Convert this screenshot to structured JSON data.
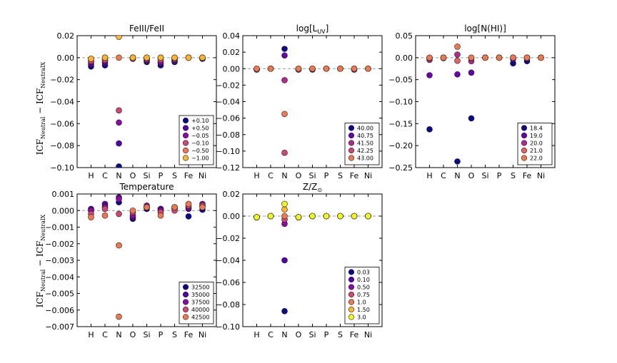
{
  "figure": {
    "ylabel_main": "ICF",
    "ylabel_sub1": "Neutral",
    "ylabel_minus": " − ICF",
    "ylabel_sub2": "NeutralX"
  },
  "chart_data": [
    {
      "type": "scatter",
      "title": "FeIII/FeII",
      "categories": [
        "H",
        "C",
        "N",
        "O",
        "Si",
        "P",
        "S",
        "Fe",
        "Ni"
      ],
      "ylim": [
        -0.1,
        0.02
      ],
      "yticks": [
        "0.02",
        "0.00",
        "−0.02",
        "−0.04",
        "−0.06",
        "−0.08",
        "−0.10"
      ],
      "ytick_values": [
        0.02,
        0.0,
        -0.02,
        -0.04,
        -0.06,
        -0.08,
        -0.1
      ],
      "reference_line": 0,
      "legend_position": "lower-right",
      "series": [
        {
          "name": "+0.10",
          "color": "#0d0887",
          "values": [
            -0.008,
            -0.007,
            -0.099,
            0.0,
            -0.004,
            -0.007,
            -0.004,
            0.0,
            -0.001
          ]
        },
        {
          "name": "+0.50",
          "color": "#5302a3",
          "values": [
            -0.006,
            -0.005,
            -0.078,
            -0.001,
            -0.003,
            -0.005,
            -0.003,
            0.0,
            -0.001
          ]
        },
        {
          "name": "−0.05",
          "color": "#8b0aa5",
          "values": [
            -0.004,
            -0.003,
            -0.059,
            -0.001,
            -0.002,
            -0.004,
            -0.002,
            0.0,
            0.0
          ]
        },
        {
          "name": "−0.10",
          "color": "#cc4778",
          "values": [
            -0.003,
            -0.002,
            -0.048,
            0.0,
            -0.001,
            -0.002,
            -0.001,
            0.0,
            0.0
          ]
        },
        {
          "name": "−0.50",
          "color": "#ed7953",
          "values": [
            -0.001,
            0.0,
            0.0,
            0.0,
            0.0,
            0.0,
            0.0,
            0.0,
            0.0
          ]
        },
        {
          "name": "−1.00",
          "color": "#fdb42f",
          "values": [
            -0.001,
            0.0,
            0.019,
            0.0,
            0.0,
            0.0,
            0.0,
            0.0,
            0.0
          ]
        }
      ]
    },
    {
      "type": "scatter",
      "title": "log[L",
      "title_sub": "UV",
      "title_end": "]",
      "categories": [
        "H",
        "C",
        "N",
        "O",
        "Si",
        "P",
        "S",
        "Fe",
        "Ni"
      ],
      "ylim": [
        -0.12,
        0.04
      ],
      "yticks": [
        "0.04",
        "0.02",
        "0.00",
        "−0.02",
        "−0.04",
        "−0.06",
        "−0.08",
        "−0.10",
        "−0.12"
      ],
      "ytick_values": [
        0.04,
        0.02,
        0.0,
        -0.02,
        -0.04,
        -0.06,
        -0.08,
        -0.1,
        -0.12
      ],
      "reference_line": 0,
      "legend_position": "lower-right",
      "series": [
        {
          "name": "40.00",
          "color": "#0d0887",
          "values": [
            -0.001,
            0.0,
            0.024,
            -0.001,
            -0.001,
            0.0,
            0.0,
            -0.001,
            0.0
          ]
        },
        {
          "name": "40.75",
          "color": "#6a00a8",
          "values": [
            -0.001,
            0.0,
            0.016,
            -0.001,
            -0.001,
            0.0,
            0.0,
            -0.001,
            0.0
          ]
        },
        {
          "name": "41.50",
          "color": "#b12a90",
          "values": [
            -0.001,
            0.0,
            -0.014,
            -0.001,
            0.0,
            0.0,
            0.0,
            0.0,
            0.0
          ]
        },
        {
          "name": "42.25",
          "color": "#cc4778",
          "values": [
            0.0,
            0.0,
            -0.102,
            0.0,
            0.0,
            0.0,
            0.0,
            0.0,
            0.0
          ]
        },
        {
          "name": "43.00",
          "color": "#ed7953",
          "values": [
            0.0,
            0.0,
            -0.055,
            0.0,
            0.0,
            0.0,
            0.0,
            0.0,
            0.0
          ]
        }
      ]
    },
    {
      "type": "scatter",
      "title": "log[N(HI)]",
      "categories": [
        "H",
        "C",
        "N",
        "O",
        "Si",
        "P",
        "S",
        "Fe",
        "Ni"
      ],
      "ylim": [
        -0.25,
        0.05
      ],
      "yticks": [
        "0.05",
        "0.00",
        "−0.05",
        "−0.10",
        "−0.15",
        "−0.20",
        "−0.25"
      ],
      "ytick_values": [
        0.05,
        0.0,
        -0.05,
        -0.1,
        -0.15,
        -0.2,
        -0.25
      ],
      "reference_line": 0,
      "legend_position": "lower-right",
      "series": [
        {
          "name": "18.4",
          "color": "#0d0887",
          "values": [
            -0.163,
            -0.001,
            -0.236,
            -0.138,
            0.0,
            0.0,
            -0.013,
            -0.008,
            0.0
          ]
        },
        {
          "name": "19.0",
          "color": "#6a00a8",
          "values": [
            -0.04,
            0.0,
            -0.038,
            -0.034,
            0.0,
            0.0,
            -0.003,
            -0.002,
            0.0
          ]
        },
        {
          "name": "20.0",
          "color": "#b12a90",
          "values": [
            -0.005,
            0.0,
            0.007,
            -0.008,
            0.0,
            0.0,
            0.0,
            0.0,
            0.0
          ]
        },
        {
          "name": "21.0",
          "color": "#e16462",
          "values": [
            -0.001,
            0.0,
            -0.007,
            -0.001,
            0.0,
            0.0,
            0.0,
            0.0,
            0.0
          ]
        },
        {
          "name": "22.0",
          "color": "#ed7953",
          "values": [
            0.0,
            0.0,
            0.025,
            0.0,
            0.0,
            0.0,
            0.0,
            0.0,
            0.0
          ]
        }
      ]
    },
    {
      "type": "scatter",
      "title": "Temperature",
      "categories": [
        "H",
        "C",
        "N",
        "O",
        "Si",
        "P",
        "S",
        "Fe",
        "Ni"
      ],
      "ylim": [
        -0.007,
        0.001
      ],
      "yticks": [
        "0.001",
        "0.000",
        "−0.001",
        "−0.002",
        "−0.003",
        "−0.004",
        "−0.005",
        "−0.006",
        "−0.007"
      ],
      "ytick_values": [
        0.001,
        0.0,
        -0.001,
        -0.002,
        -0.003,
        -0.004,
        -0.005,
        -0.006,
        -0.007
      ],
      "reference_line": 0,
      "legend_position": "lower-right",
      "series": [
        {
          "name": "32500",
          "color": "#0d0887",
          "values": [
            5e-05,
            0.0003,
            0.0005,
            -0.0005,
            0.0001,
            0.0001,
            0.0001,
            -0.00035,
            5e-05
          ]
        },
        {
          "name": "35000",
          "color": "#5302a3",
          "values": [
            0.0001,
            0.0004,
            0.0008,
            -0.0004,
            0.0002,
            0.0001,
            0.0002,
            0.0001,
            0.0003
          ]
        },
        {
          "name": "37500",
          "color": "#8b0aa5",
          "values": [
            0.0,
            0.0002,
            0.0007,
            -0.0003,
            0.0003,
            0.0,
            0.0001,
            0.0002,
            0.0004
          ]
        },
        {
          "name": "40000",
          "color": "#cc4778",
          "values": [
            -0.0002,
            0.0001,
            -0.0002,
            -0.0001,
            0.0002,
            -0.0001,
            0.0,
            0.0003,
            0.0003
          ]
        },
        {
          "name": "42500",
          "color": "#ed7953",
          "values": [
            -0.0004,
            -0.0003,
            -0.0021,
            0.0,
            0.0002,
            -0.0003,
            0.0002,
            0.0004,
            0.0002
          ]
        },
        {
          "name": "",
          "color": "#ed7953",
          "values": [
            null,
            null,
            -0.0064,
            null,
            null,
            null,
            null,
            null,
            null
          ]
        }
      ]
    },
    {
      "type": "scatter",
      "title": "Z/Z",
      "title_sub": "⊙",
      "categories": [
        "H",
        "C",
        "N",
        "O",
        "Si",
        "P",
        "S",
        "Fe",
        "Ni"
      ],
      "ylim": [
        -0.1,
        0.02
      ],
      "yticks": [
        "0.02",
        "0.00",
        "−0.02",
        "−0.04",
        "−0.06",
        "−0.08",
        "−0.10"
      ],
      "ytick_values": [
        0.02,
        0.0,
        -0.02,
        -0.04,
        -0.06,
        -0.08,
        -0.1
      ],
      "reference_line": 0,
      "legend_position": "lower-right",
      "series": [
        {
          "name": "0.03",
          "color": "#0d0887",
          "values": [
            -0.001,
            0.0,
            -0.086,
            -0.001,
            0.0,
            0.0,
            0.0,
            0.0,
            0.0
          ]
        },
        {
          "name": "0.10",
          "color": "#5302a3",
          "values": [
            -0.001,
            0.0,
            -0.04,
            -0.001,
            0.0,
            0.0,
            0.0,
            0.0,
            0.0
          ]
        },
        {
          "name": "0.50",
          "color": "#8b0aa5",
          "values": [
            -0.001,
            0.0,
            -0.007,
            -0.001,
            0.0,
            0.0,
            0.0,
            0.0,
            0.0
          ]
        },
        {
          "name": "0.75",
          "color": "#cc4778",
          "values": [
            -0.001,
            0.0,
            -0.003,
            -0.001,
            0.0,
            0.0,
            0.0,
            0.0,
            0.0
          ]
        },
        {
          "name": "1.0",
          "color": "#ed7953",
          "values": [
            -0.001,
            0.0,
            0.0,
            -0.001,
            0.0,
            0.0,
            0.0,
            0.0,
            0.0
          ]
        },
        {
          "name": "1.50",
          "color": "#fdb42f",
          "values": [
            -0.001,
            0.0,
            0.006,
            -0.001,
            0.0,
            0.0,
            0.0,
            0.0,
            0.0
          ]
        },
        {
          "name": "3.0",
          "color": "#f0f921",
          "values": [
            -0.001,
            0.0,
            0.011,
            -0.001,
            0.0,
            0.0,
            0.0,
            0.0,
            0.0
          ]
        }
      ]
    }
  ]
}
